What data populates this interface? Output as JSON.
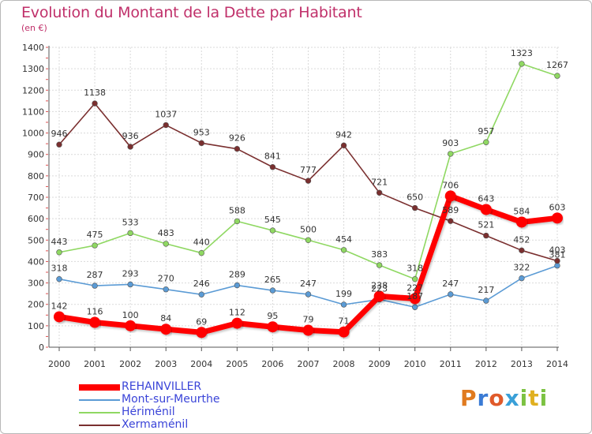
{
  "header": {
    "title": "Evolution du Montant de la Dette par Habitant",
    "subtitle": "(en €)"
  },
  "brand": {
    "letters": [
      "P",
      "r",
      "o",
      "x",
      "i",
      "t",
      "i"
    ],
    "colors": [
      "#e07a1f",
      "#3a7bd5",
      "#e05a2a",
      "#3aa0d8",
      "#7cc242",
      "#e0b020",
      "#7cc242"
    ]
  },
  "chart_data": {
    "type": "line",
    "title": "Evolution du Montant de la Dette par Habitant",
    "subtitle": "(en €)",
    "xlabel": "",
    "ylabel": "",
    "x": [
      "2000",
      "2001",
      "2002",
      "2003",
      "2004",
      "2005",
      "2006",
      "2007",
      "2008",
      "2009",
      "2010",
      "2011",
      "2012",
      "2013",
      "2014"
    ],
    "ylim": [
      0,
      1400
    ],
    "yticks": [
      0,
      100,
      200,
      300,
      400,
      500,
      600,
      700,
      800,
      900,
      1000,
      1100,
      1200,
      1300,
      1400
    ],
    "grid": true,
    "legend_position": "bottom-left",
    "series": [
      {
        "name": "REHAINVILLER",
        "color": "#ff0000",
        "values": [
          142,
          116,
          100,
          84,
          69,
          112,
          95,
          79,
          71,
          238,
          227,
          706,
          643,
          584,
          603
        ],
        "labels": [
          "142",
          "116",
          "100",
          "84",
          "69",
          "112",
          "95",
          "79",
          "71",
          "238",
          "227",
          "706",
          "643",
          "584",
          "603"
        ]
      },
      {
        "name": "Mont-sur-Meurthe",
        "color": "#5b9bd5",
        "values": [
          318,
          287,
          293,
          270,
          246,
          289,
          265,
          247,
          199,
          223,
          187,
          247,
          217,
          322,
          381
        ],
        "labels": [
          "318",
          "287",
          "293",
          "270",
          "246",
          "289",
          "265",
          "247",
          "199",
          "223",
          "187",
          "247",
          "217",
          "322",
          "381"
        ]
      },
      {
        "name": "Hériménil",
        "color": "#8fd862",
        "values": [
          443,
          475,
          533,
          483,
          440,
          588,
          545,
          500,
          454,
          383,
          318,
          903,
          957,
          1323,
          1267
        ],
        "labels": [
          "443",
          "475",
          "533",
          "483",
          "440",
          "588",
          "545",
          "500",
          "454",
          "383",
          "318",
          "903",
          "957",
          "1323",
          "1267"
        ]
      },
      {
        "name": "Xermaménil",
        "color": "#7a2f2f",
        "values": [
          946,
          1138,
          936,
          1037,
          953,
          926,
          841,
          777,
          942,
          721,
          650,
          589,
          521,
          452,
          403
        ],
        "labels": [
          "946",
          "1138",
          "936",
          "1037",
          "953",
          "926",
          "841",
          "777",
          "942",
          "721",
          "650",
          "589",
          "521",
          "452",
          "403"
        ]
      }
    ]
  }
}
